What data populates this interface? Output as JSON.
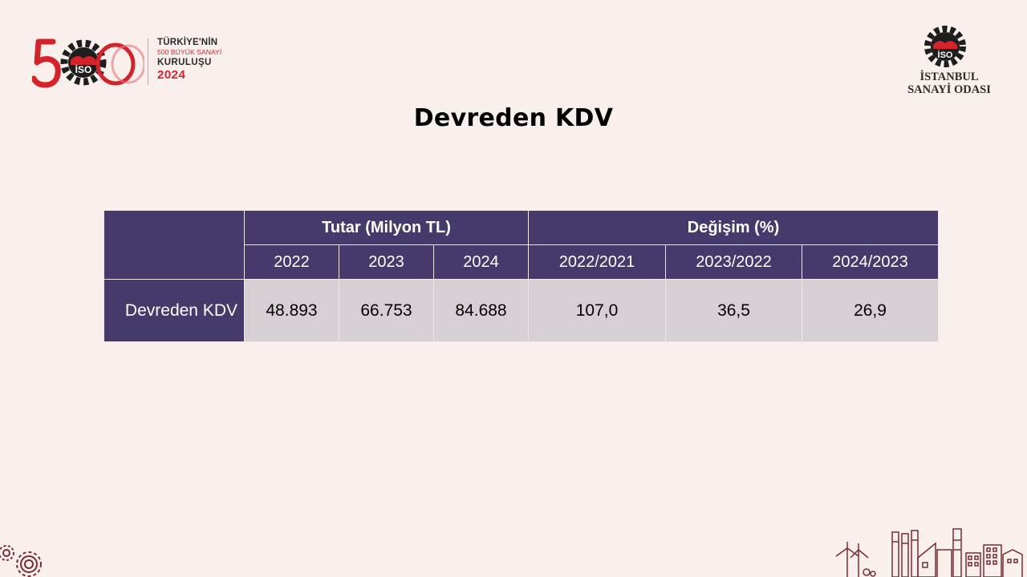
{
  "logo_500": {
    "big_number": "500",
    "emblem_text": "İSO",
    "line1": "TÜRKİYE'NİN",
    "line2": "500 BÜYÜK SANAYİ",
    "line3": "KURULUŞU",
    "year": "2024"
  },
  "iso_logo": {
    "emblem_text": "İSO",
    "name_line1": "İSTANBUL",
    "name_line2": "SANAYİ ODASI"
  },
  "page": {
    "title": "Devreden KDV"
  },
  "table": {
    "group_amount": "Tutar (Milyon TL)",
    "group_change": "Değişim (%)",
    "amount_years": [
      "2022",
      "2023",
      "2024"
    ],
    "change_periods": [
      "2022/2021",
      "2023/2022",
      "2024/2023"
    ],
    "row_label": "Devreden KDV",
    "amount_values": [
      "48.893",
      "66.753",
      "84.688"
    ],
    "change_values": [
      "107,0",
      "36,5",
      "26,9"
    ]
  },
  "colors": {
    "background": "#f9f0ee",
    "header_purple": "#463a6c",
    "cell_gray": "#d7cfd6",
    "brand_red": "#d4232b",
    "decor_maroon": "#7a2a30"
  },
  "icons": {
    "bottom_left": "gears-icon",
    "bottom_right": "factory-skyline-icon"
  }
}
